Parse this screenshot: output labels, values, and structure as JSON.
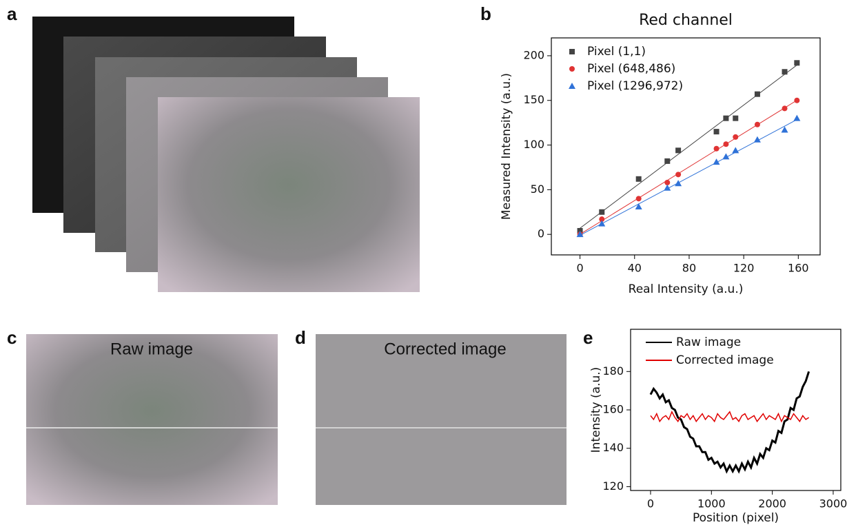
{
  "panel_labels": [
    "a",
    "b",
    "c",
    "d",
    "e"
  ],
  "image_titles": [
    "Raw image",
    "Corrected image"
  ],
  "chart_data": [
    {
      "type": "scatter",
      "title": "Red channel",
      "x_label": "Real Intensity (a.u.)",
      "y_label": "Measured Intensity (a.u.)",
      "x": [
        0,
        16,
        43,
        64,
        72,
        100,
        107,
        114,
        130,
        150,
        159
      ],
      "series": [
        {
          "name": "Pixel (1,1)",
          "color": "#444444",
          "marker": "square",
          "values": [
            4,
            25,
            62,
            82,
            94,
            115,
            130,
            130,
            157,
            182,
            192
          ]
        },
        {
          "name": "Pixel (648,486)",
          "color": "#e03434",
          "marker": "circle",
          "values": [
            0,
            17,
            40,
            58,
            67,
            96,
            101,
            109,
            123,
            141,
            150
          ]
        },
        {
          "name": "Pixel (1296,972)",
          "color": "#2f72d8",
          "marker": "triangle",
          "values": [
            0,
            12,
            31,
            52,
            57,
            81,
            87,
            94,
            106,
            117,
            130
          ]
        }
      ],
      "fit_lines": true,
      "xlim": [
        -21,
        176
      ],
      "ylim": [
        -23,
        220
      ],
      "xticks": [
        0,
        40,
        80,
        120,
        160
      ],
      "yticks": [
        0,
        50,
        100,
        150,
        200
      ]
    },
    {
      "type": "line",
      "x_label": "Position (pixel)",
      "y_label": "Intensity (a.u.)",
      "x": [
        0,
        50,
        100,
        150,
        200,
        250,
        300,
        350,
        400,
        450,
        500,
        550,
        600,
        650,
        700,
        750,
        800,
        850,
        900,
        950,
        1000,
        1050,
        1100,
        1150,
        1200,
        1250,
        1300,
        1350,
        1400,
        1450,
        1500,
        1550,
        1600,
        1650,
        1700,
        1750,
        1800,
        1850,
        1900,
        1950,
        2000,
        2050,
        2100,
        2150,
        2200,
        2250,
        2300,
        2350,
        2400,
        2450,
        2500,
        2550,
        2600
      ],
      "series": [
        {
          "name": "Raw image",
          "color": "#000000",
          "values": [
            168,
            171,
            169,
            166,
            168,
            164,
            165,
            161,
            160,
            156,
            155,
            151,
            150,
            146,
            145,
            141,
            141,
            138,
            138,
            134,
            135,
            132,
            133,
            130,
            132,
            128,
            131,
            128,
            131,
            128,
            132,
            129,
            133,
            130,
            135,
            132,
            137,
            135,
            140,
            139,
            144,
            143,
            149,
            148,
            154,
            155,
            161,
            160,
            166,
            167,
            172,
            175,
            180
          ]
        },
        {
          "name": "Corrected image",
          "color": "#e00000",
          "values": [
            157,
            155,
            158,
            154,
            156,
            157,
            155,
            159,
            156,
            154,
            157,
            156,
            158,
            155,
            157,
            154,
            156,
            158,
            155,
            157,
            156,
            154,
            158,
            156,
            155,
            157,
            159,
            155,
            156,
            154,
            157,
            158,
            155,
            156,
            157,
            154,
            156,
            158,
            155,
            157,
            156,
            155,
            158,
            154,
            157,
            156,
            155,
            158,
            156,
            154,
            157,
            155,
            156
          ]
        }
      ],
      "xlim": [
        -328,
        3125
      ],
      "ylim": [
        118,
        202
      ],
      "xticks": [
        0,
        1000,
        2000,
        3000
      ],
      "yticks": [
        120,
        140,
        160,
        180
      ]
    }
  ]
}
